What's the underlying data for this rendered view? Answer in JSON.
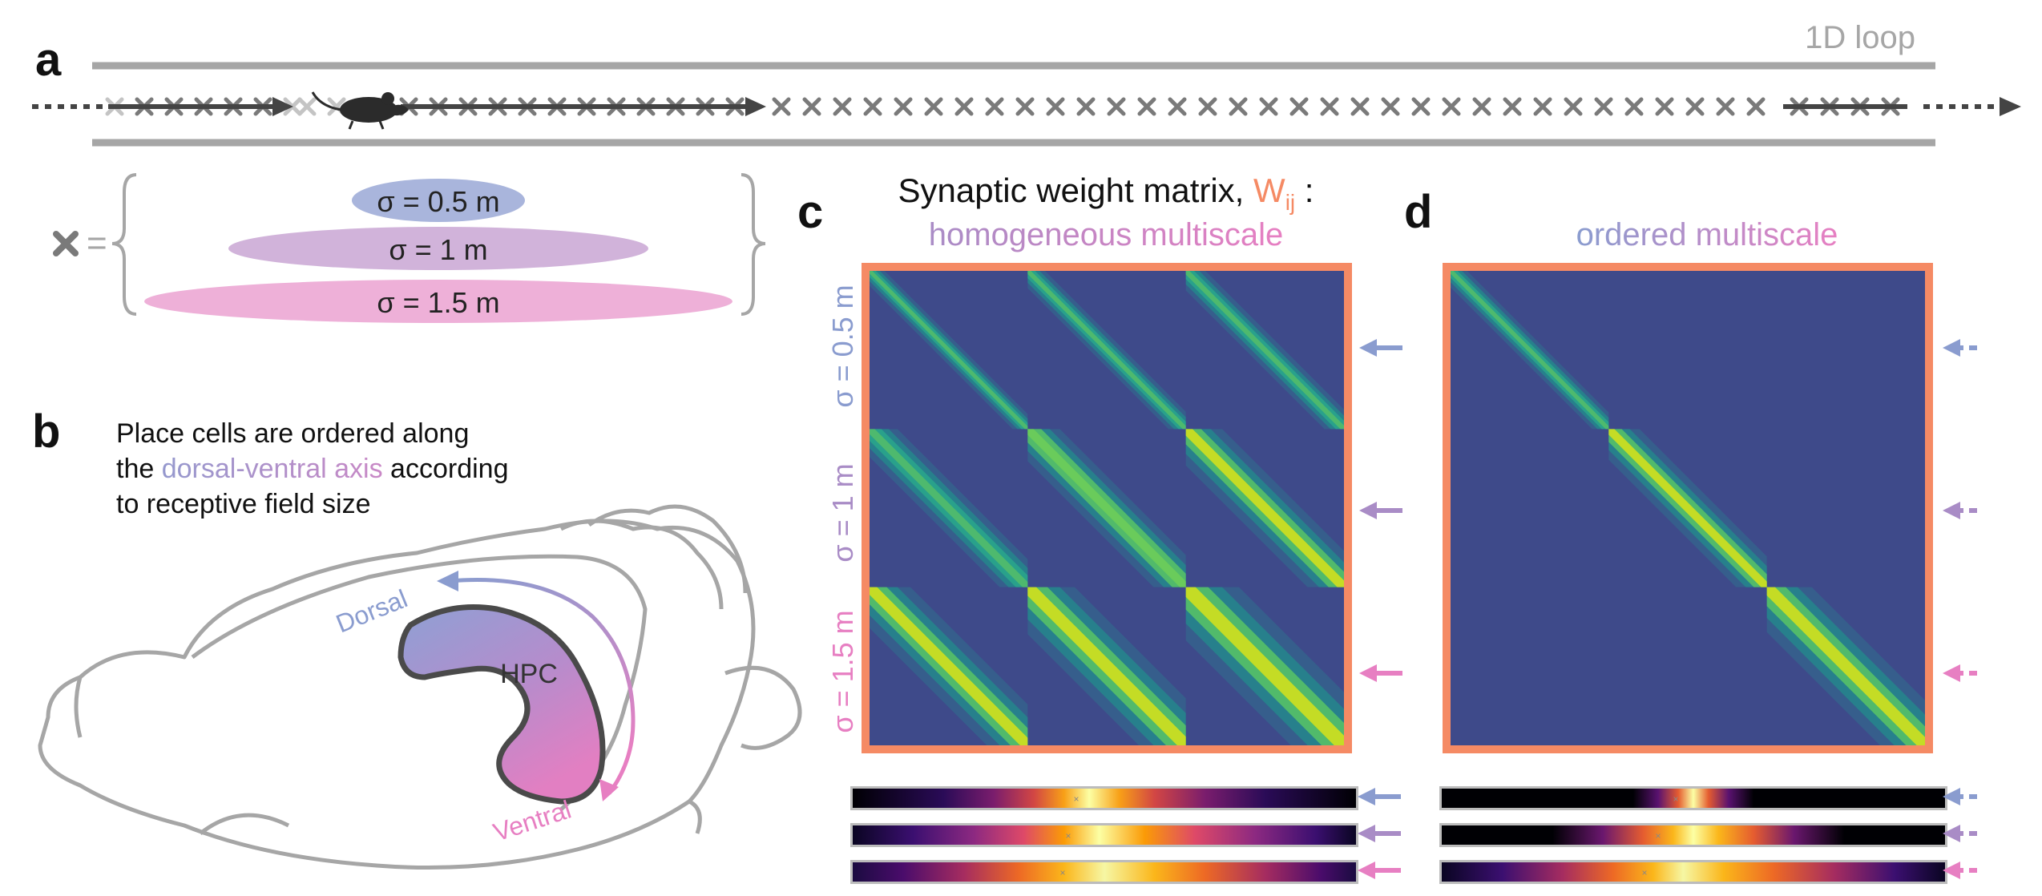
{
  "panels": {
    "a": "a",
    "b": "b",
    "c": "c",
    "d": "d"
  },
  "panel_a": {
    "track_label": "1D loop",
    "legend_equals": "=",
    "scales": [
      "σ = 0.5 m",
      "σ = 1 m",
      "σ = 1.5 m"
    ]
  },
  "panel_b": {
    "line1": "Place cells are ordered along",
    "line2_prefix": "the ",
    "line2_highlight": "dorsal-ventral axis",
    "line2_suffix": " according",
    "line3": "to receptive field size",
    "dorsal": "Dorsal",
    "ventral": "Ventral",
    "hpc": "HPC"
  },
  "matrix_title": {
    "prefix": "Synaptic weight matrix, ",
    "w": "W",
    "subscript": "ij",
    "suffix": " :"
  },
  "panel_c": {
    "subtitle": "homogeneous multiscale",
    "row_labels": [
      "σ = 0.5 m",
      "σ = 1 m",
      "σ = 1.5 m"
    ]
  },
  "panel_d": {
    "subtitle": "ordered multiscale"
  },
  "colors": {
    "scale_small": "#8a9ccf",
    "scale_medium": "#a98cc6",
    "scale_large": "#e77fc2",
    "frame_orange": "#f58a64",
    "track_gray": "#a6a6a6",
    "matrix_background": "#3e4a8a",
    "text_dark": "#111111"
  },
  "icons": [
    "mouse-icon",
    "place-field-cross-icon",
    "brain-outline-icon",
    "hippocampus-shape-icon",
    "arrow-icon",
    "dashed-arrow-icon",
    "curly-brace-icon"
  ]
}
